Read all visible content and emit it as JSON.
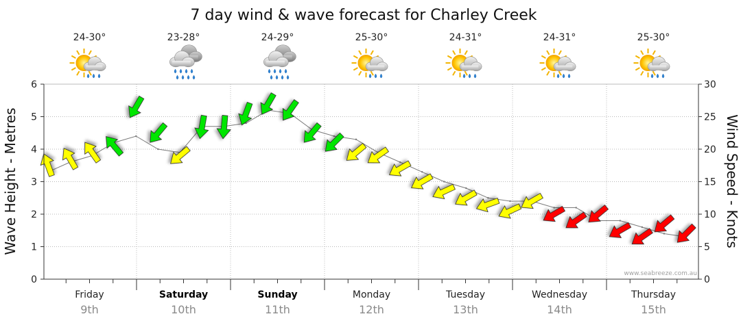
{
  "chart_data": {
    "type": "line",
    "title": "7 day wind & wave forecast for Charley Creek",
    "ylabel_left": "Wave Height - Metres",
    "ylabel_right": "Wind Speed - Knots",
    "y_left_range": [
      0,
      6
    ],
    "y_left_ticks": [
      "0",
      "1",
      "2",
      "3",
      "4",
      "5",
      "6"
    ],
    "y_right_range": [
      0,
      30
    ],
    "y_right_ticks": [
      "0",
      "5",
      "10",
      "15",
      "20",
      "25",
      "30"
    ],
    "days": [
      {
        "name": "Friday",
        "date": "9th",
        "temp": "24-30°",
        "icon": "sun-cloud-rain-icon",
        "bold": false
      },
      {
        "name": "Saturday",
        "date": "10th",
        "temp": "23-28°",
        "icon": "rain-cloud-icon",
        "bold": true
      },
      {
        "name": "Sunday",
        "date": "11th",
        "temp": "24-29°",
        "icon": "rain-cloud-icon",
        "bold": true
      },
      {
        "name": "Monday",
        "date": "12th",
        "temp": "25-30°",
        "icon": "sun-cloud-rain-icon",
        "bold": false
      },
      {
        "name": "Tuesday",
        "date": "13th",
        "temp": "24-31°",
        "icon": "sun-cloud-rain-icon",
        "bold": false
      },
      {
        "name": "Wednesday",
        "date": "14th",
        "temp": "24-31°",
        "icon": "sun-cloud-rain-icon",
        "bold": false
      },
      {
        "name": "Thursday",
        "date": "15th",
        "temp": "25-30°",
        "icon": "sun-cloud-rain-icon",
        "bold": false
      }
    ],
    "wave_series_name": "Wave Height (m)",
    "wave_height": [
      3.3,
      3.6,
      3.8,
      4.2,
      4.4,
      4.0,
      3.9,
      4.7,
      4.7,
      4.8,
      5.2,
      5.1,
      4.6,
      4.4,
      4.3,
      3.9,
      3.6,
      3.3,
      3.0,
      2.8,
      2.5,
      2.4,
      2.4,
      2.2,
      2.2,
      1.8,
      1.8,
      1.6,
      1.4,
      1.3
    ],
    "wind_series_name": "Wind Speed (knots)",
    "wind_speed": [
      17.5,
      18.5,
      19.5,
      20.5,
      26.5,
      22.5,
      19.0,
      23.5,
      23.5,
      25.5,
      27.0,
      26.0,
      22.5,
      21.0,
      19.5,
      19.0,
      17.0,
      15.0,
      13.5,
      12.5,
      11.5,
      10.5,
      12.0,
      10.0,
      9.0,
      10.0,
      7.5,
      6.5,
      8.5,
      7.0
    ],
    "wind_direction_deg": [
      250,
      240,
      235,
      230,
      120,
      130,
      140,
      100,
      95,
      110,
      120,
      125,
      130,
      135,
      140,
      145,
      150,
      150,
      155,
      150,
      160,
      155,
      150,
      150,
      145,
      140,
      150,
      145,
      140,
      135
    ],
    "wind_colors": {
      "low": "#ffff00",
      "mid": "#00e600",
      "high": "#ff0000"
    },
    "credit": "www.seabreeze.com.au"
  }
}
